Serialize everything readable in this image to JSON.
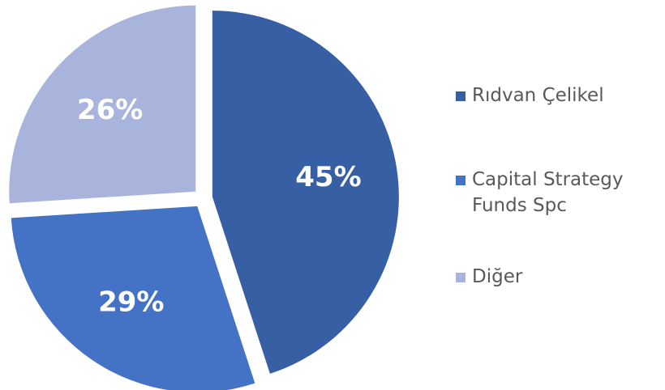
{
  "chart_data": {
    "type": "pie",
    "categories": [
      "Rıdvan Çelikel",
      "Capital Strategy Funds Spc",
      "Diğer"
    ],
    "values": [
      45,
      29,
      26
    ],
    "value_labels": [
      "45%",
      "29%",
      "26%"
    ],
    "colors": [
      "#365fa4",
      "#4472c4",
      "#a9b4dc"
    ],
    "legend": "right"
  }
}
